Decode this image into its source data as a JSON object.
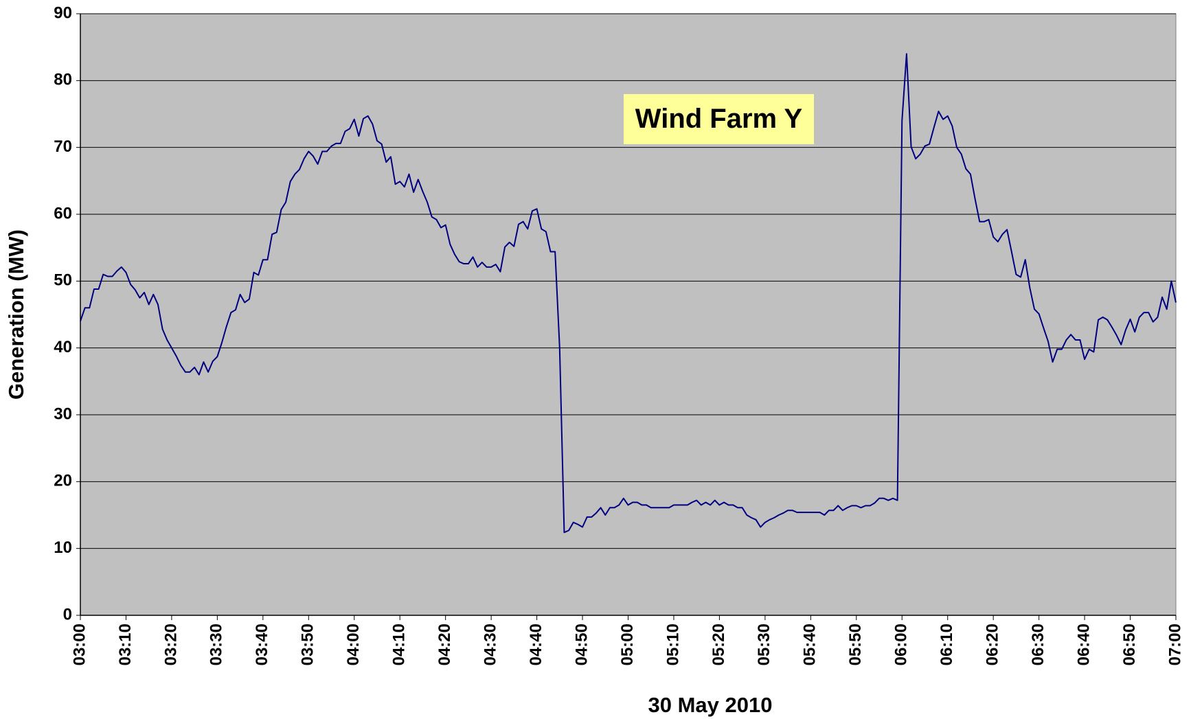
{
  "chart_data": {
    "type": "line",
    "annotation": "Wind Farm Y",
    "xlabel": "30 May 2010",
    "ylabel": "Generation (MW)",
    "categories": [
      "03:00",
      null,
      null,
      null,
      null,
      null,
      null,
      null,
      null,
      null,
      "03:10",
      null,
      null,
      null,
      null,
      null,
      null,
      null,
      null,
      null,
      "03:20",
      null,
      null,
      null,
      null,
      null,
      null,
      null,
      null,
      null,
      "03:30",
      null,
      null,
      null,
      null,
      null,
      null,
      null,
      null,
      null,
      "03:40",
      null,
      null,
      null,
      null,
      null,
      null,
      null,
      null,
      null,
      "03:50",
      null,
      null,
      null,
      null,
      null,
      null,
      null,
      null,
      null,
      "04:00",
      null,
      null,
      null,
      null,
      null,
      null,
      null,
      null,
      null,
      "04:10",
      null,
      null,
      null,
      null,
      null,
      null,
      null,
      null,
      null,
      "04:20",
      null,
      null,
      null,
      null,
      null,
      null,
      null,
      null,
      null,
      "04:30",
      null,
      null,
      null,
      null,
      null,
      null,
      null,
      null,
      null,
      "04:40",
      null,
      null,
      null,
      null,
      null,
      null,
      null,
      null,
      null,
      "04:50",
      null,
      null,
      null,
      null,
      null,
      null,
      null,
      null,
      null,
      "05:00",
      null,
      null,
      null,
      null,
      null,
      null,
      null,
      null,
      null,
      "05:10",
      null,
      null,
      null,
      null,
      null,
      null,
      null,
      null,
      null,
      "05:20",
      null,
      null,
      null,
      null,
      null,
      null,
      null,
      null,
      null,
      "05:30",
      null,
      null,
      null,
      null,
      null,
      null,
      null,
      null,
      null,
      "05:40",
      null,
      null,
      null,
      null,
      null,
      null,
      null,
      null,
      null,
      "05:50",
      null,
      null,
      null,
      null,
      null,
      null,
      null,
      null,
      null,
      "06:00",
      null,
      null,
      null,
      null,
      null,
      null,
      null,
      null,
      null,
      "06:10",
      null,
      null,
      null,
      null,
      null,
      null,
      null,
      null,
      null,
      "06:20",
      null,
      null,
      null,
      null,
      null,
      null,
      null,
      null,
      null,
      "06:30",
      null,
      null,
      null,
      null,
      null,
      null,
      null,
      null,
      null,
      "06:40",
      null,
      null,
      null,
      null,
      null,
      null,
      null,
      null,
      null,
      "06:50",
      null,
      null,
      null,
      null,
      null,
      null,
      null,
      null,
      null,
      "07:00"
    ],
    "values": [
      44,
      46,
      46,
      48.8,
      48.8,
      51,
      50.7,
      50.7,
      51.5,
      52.1,
      51.3,
      49.5,
      48.7,
      47.5,
      48.3,
      46.5,
      48,
      46.5,
      42.8,
      41.2,
      40,
      38.8,
      37.4,
      36.4,
      36.4,
      37.1,
      36,
      37.9,
      36.4,
      38,
      38.7,
      40.8,
      43.2,
      45.3,
      45.7,
      48,
      46.8,
      47.3,
      51.3,
      50.9,
      53.2,
      53.2,
      57,
      57.3,
      60.7,
      61.8,
      64.9,
      66,
      66.7,
      68.3,
      69.4,
      68.7,
      67.5,
      69.4,
      69.4,
      70.2,
      70.6,
      70.6,
      72.4,
      72.8,
      74.2,
      71.7,
      74.3,
      74.7,
      73.5,
      71,
      70.5,
      67.8,
      68.6,
      64.5,
      64.9,
      64.1,
      66,
      63.3,
      65.2,
      63.4,
      61.8,
      59.6,
      59.2,
      58,
      58.4,
      55.5,
      54,
      52.9,
      52.6,
      52.6,
      53.6,
      52.1,
      52.8,
      52.1,
      52.1,
      52.5,
      51.4,
      55.1,
      55.8,
      55.2,
      58.5,
      58.9,
      57.8,
      60.5,
      60.8,
      57.8,
      57.4,
      54.4,
      54.4,
      40,
      12.4,
      12.7,
      13.9,
      13.6,
      13.2,
      14.7,
      14.7,
      15.3,
      16.1,
      15,
      16.1,
      16.1,
      16.5,
      17.5,
      16.5,
      16.9,
      16.9,
      16.5,
      16.5,
      16.1,
      16.1,
      16.1,
      16.1,
      16.1,
      16.5,
      16.5,
      16.5,
      16.5,
      16.9,
      17.2,
      16.5,
      16.9,
      16.5,
      17.2,
      16.5,
      16.9,
      16.5,
      16.5,
      16.1,
      16.1,
      15,
      14.6,
      14.3,
      13.2,
      13.9,
      14.3,
      14.6,
      15,
      15.3,
      15.7,
      15.7,
      15.4,
      15.4,
      15.4,
      15.4,
      15.4,
      15.4,
      15,
      15.7,
      15.7,
      16.4,
      15.7,
      16.1,
      16.4,
      16.4,
      16.1,
      16.4,
      16.4,
      16.8,
      17.5,
      17.5,
      17.2,
      17.5,
      17.2,
      74,
      84,
      70.1,
      68.3,
      69,
      70.2,
      70.5,
      73,
      75.4,
      74.2,
      74.7,
      73.2,
      70,
      69,
      66.8,
      66,
      62.3,
      58.9,
      58.9,
      59.2,
      56.6,
      55.9,
      57,
      57.7,
      54.4,
      51,
      50.6,
      53.2,
      49,
      45.8,
      45.1,
      43,
      41,
      37.9,
      39.8,
      39.8,
      41.2,
      42,
      41.2,
      41.2,
      38.3,
      39.8,
      39.4,
      44.2,
      44.6,
      44.2,
      43.1,
      41.9,
      40.5,
      42.7,
      44.3,
      42.4,
      44.6,
      45.3,
      45.3,
      43.9,
      44.6,
      47.6,
      45.8,
      50,
      46.8
    ],
    "color": "#000080",
    "plot_background": "#c0c0c0",
    "annotation_background": "#ffff99",
    "ylim": [
      0,
      90
    ],
    "yticks": [
      0,
      10,
      20,
      30,
      40,
      50,
      60,
      70,
      80,
      90
    ],
    "grid": true
  }
}
